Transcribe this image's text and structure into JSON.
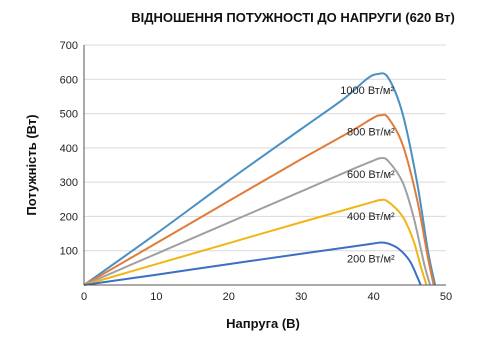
{
  "chart_data": {
    "type": "line",
    "title": "ВІДНОШЕННЯ ПОТУЖНОСТІ ДО НАПРУГИ (620 Вт)",
    "xlabel": "Напруга (В)",
    "ylabel": "Потужність (Вт)",
    "xlim": [
      0,
      50
    ],
    "ylim": [
      0,
      700
    ],
    "xticks": [
      0,
      10,
      20,
      30,
      40,
      50
    ],
    "yticks": [
      100,
      200,
      300,
      400,
      500,
      600,
      700
    ],
    "grid": "horizontal",
    "legend": "inline labels near curve peaks",
    "series": [
      {
        "name": "1000 Вт/м²",
        "color": "#4a90c2",
        "x": [
          0,
          10,
          20,
          30,
          36,
          39,
          40.5,
          42,
          44,
          46,
          47.5,
          48.5
        ],
        "y": [
          0,
          150,
          305,
          455,
          545,
          600,
          615,
          605,
          500,
          300,
          100,
          0
        ]
      },
      {
        "name": "800 Вт/м²",
        "color": "#e07b39",
        "x": [
          0,
          10,
          20,
          30,
          37,
          40,
          41,
          42,
          44,
          46,
          47.5,
          48.3
        ],
        "y": [
          0,
          122,
          245,
          367,
          450,
          488,
          495,
          488,
          410,
          250,
          80,
          0
        ]
      },
      {
        "name": "600 Вт/м²",
        "color": "#a0a0a0",
        "x": [
          0,
          10,
          20,
          30,
          37,
          40,
          41,
          42,
          44,
          45.5,
          47,
          47.8
        ],
        "y": [
          0,
          91,
          182,
          273,
          337,
          363,
          370,
          362,
          300,
          200,
          60,
          0
        ]
      },
      {
        "name": "400 Вт/м²",
        "color": "#f2b515",
        "x": [
          0,
          10,
          20,
          30,
          37,
          40,
          41,
          42,
          44,
          45.5,
          46.5,
          47.3
        ],
        "y": [
          0,
          61,
          122,
          183,
          225,
          243,
          248,
          243,
          200,
          130,
          55,
          0
        ]
      },
      {
        "name": "200 Вт/м²",
        "color": "#3a6fc4",
        "x": [
          0,
          10,
          20,
          30,
          37,
          40,
          41,
          42,
          43.5,
          45,
          46,
          46.5
        ],
        "y": [
          0,
          30,
          61,
          91,
          112,
          121,
          124,
          121,
          105,
          70,
          25,
          0
        ]
      }
    ]
  }
}
